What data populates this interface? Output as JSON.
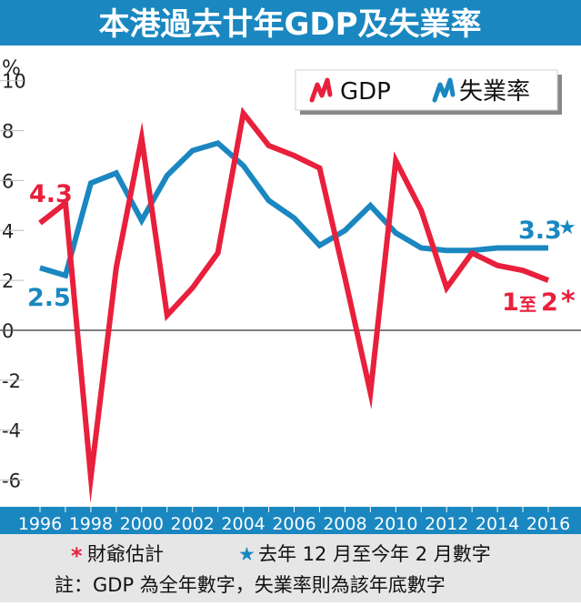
{
  "header": {
    "title": "本港過去廿年GDP及失業率"
  },
  "colors": {
    "header_bg": "#1a87c0",
    "gdp": "#e8203c",
    "unemployment": "#1a87c0",
    "axis_band": "#1a87c0",
    "footer_bg": "#e6e6e6"
  },
  "chart_data": {
    "type": "line",
    "y_unit_label": "%",
    "ylim": [
      -7,
      10.5
    ],
    "y_ticks": [
      "10",
      "8",
      "6",
      "4",
      "2",
      "0",
      "-2",
      "-4",
      "-6"
    ],
    "y_tick_values": [
      10,
      8,
      6,
      4,
      2,
      0,
      -2,
      -4,
      -6
    ],
    "x": [
      1996,
      1997,
      1998,
      1999,
      2000,
      2001,
      2002,
      2003,
      2004,
      2005,
      2006,
      2007,
      2008,
      2009,
      2010,
      2011,
      2012,
      2013,
      2014,
      2015,
      2016
    ],
    "x_tick_labels": [
      "1996",
      "1998",
      "2000",
      "2002",
      "2004",
      "2006",
      "2008",
      "2010",
      "2012",
      "2014",
      "2016"
    ],
    "x_tick_values": [
      1996,
      1998,
      2000,
      2002,
      2004,
      2006,
      2008,
      2010,
      2012,
      2014,
      2016
    ],
    "grid": false,
    "legend_position": "top-right",
    "series": [
      {
        "name": "GDP",
        "color": "#e8203c",
        "values": [
          4.3,
          5.1,
          -5.9,
          2.5,
          7.7,
          0.6,
          1.7,
          3.1,
          8.7,
          7.4,
          7.0,
          6.5,
          2.1,
          -2.5,
          6.8,
          4.8,
          1.7,
          3.1,
          2.6,
          2.4,
          2.0
        ]
      },
      {
        "name": "失業率",
        "color": "#1a87c0",
        "values": [
          2.5,
          2.2,
          5.9,
          6.3,
          4.4,
          6.2,
          7.2,
          7.5,
          6.6,
          5.2,
          4.5,
          3.4,
          4.0,
          5.0,
          3.9,
          3.3,
          3.2,
          3.2,
          3.3,
          3.3,
          3.3
        ]
      }
    ],
    "annotations": [
      {
        "text": "4.3",
        "series": "GDP"
      },
      {
        "text": "2.5",
        "series": "失業率"
      },
      {
        "text": "3.3",
        "series": "失業率",
        "marker": "★"
      },
      {
        "text_parts": [
          "1",
          "至",
          "2"
        ],
        "series": "GDP",
        "marker": "*"
      }
    ]
  },
  "footnotes": {
    "estimate_marker": "*",
    "estimate_text": "財爺估計",
    "star_marker": "★",
    "star_text": "去年 12 月至今年 2 月數字",
    "note_text": "註：GDP 為全年數字，失業率則為該年底數字"
  }
}
